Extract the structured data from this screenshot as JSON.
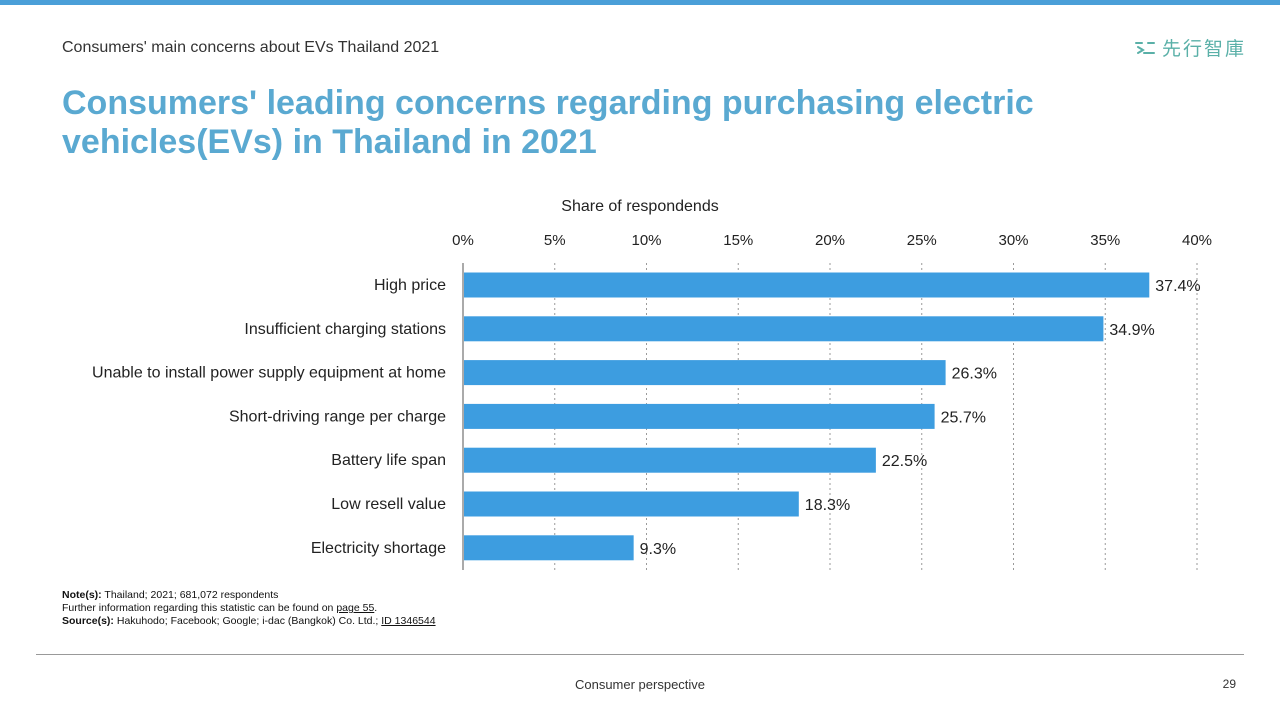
{
  "header": {
    "subtitle": "Consumers' main concerns about EVs Thailand 2021",
    "logo_text": "先行智庫",
    "title": "Consumers' leading concerns regarding purchasing electric vehicles(EVs) in Thailand in 2021"
  },
  "chart_data": {
    "type": "bar",
    "orientation": "horizontal",
    "xlabel": "Share of respondends",
    "ylabel": "",
    "xlim": [
      0,
      40
    ],
    "ticks": [
      "0%",
      "5%",
      "10%",
      "15%",
      "20%",
      "25%",
      "30%",
      "35%",
      "40%"
    ],
    "tick_values": [
      0,
      5,
      10,
      15,
      20,
      25,
      30,
      35,
      40
    ],
    "categories": [
      "High price",
      "Insufficient charging stations",
      "Unable to install power supply equipment at home",
      "Short-driving range per charge",
      "Battery life span",
      "Low resell value",
      "Electricity shortage"
    ],
    "values": [
      37.4,
      34.9,
      26.3,
      25.7,
      22.5,
      18.3,
      9.3
    ],
    "value_labels": [
      "37.4%",
      "34.9%",
      "26.3%",
      "25.7%",
      "22.5%",
      "18.3%",
      "9.3%"
    ],
    "bar_color": "#3d9de0",
    "grid": "vertical dotted",
    "legend": "none"
  },
  "notes": {
    "note_label": "Note(s):",
    "note_text": "Thailand; 2021; 681,072 respondents",
    "further_text": "Further  information regarding this statistic can be found on",
    "further_link": "page 55",
    "source_label": "Source(s):",
    "source_text": "Hakuhodo; Facebook; Google;  i-dac (Bangkok) Co. Ltd.;",
    "source_link": "ID 1346544"
  },
  "footer": {
    "section": "Consumer  perspective",
    "page_number": "29"
  }
}
